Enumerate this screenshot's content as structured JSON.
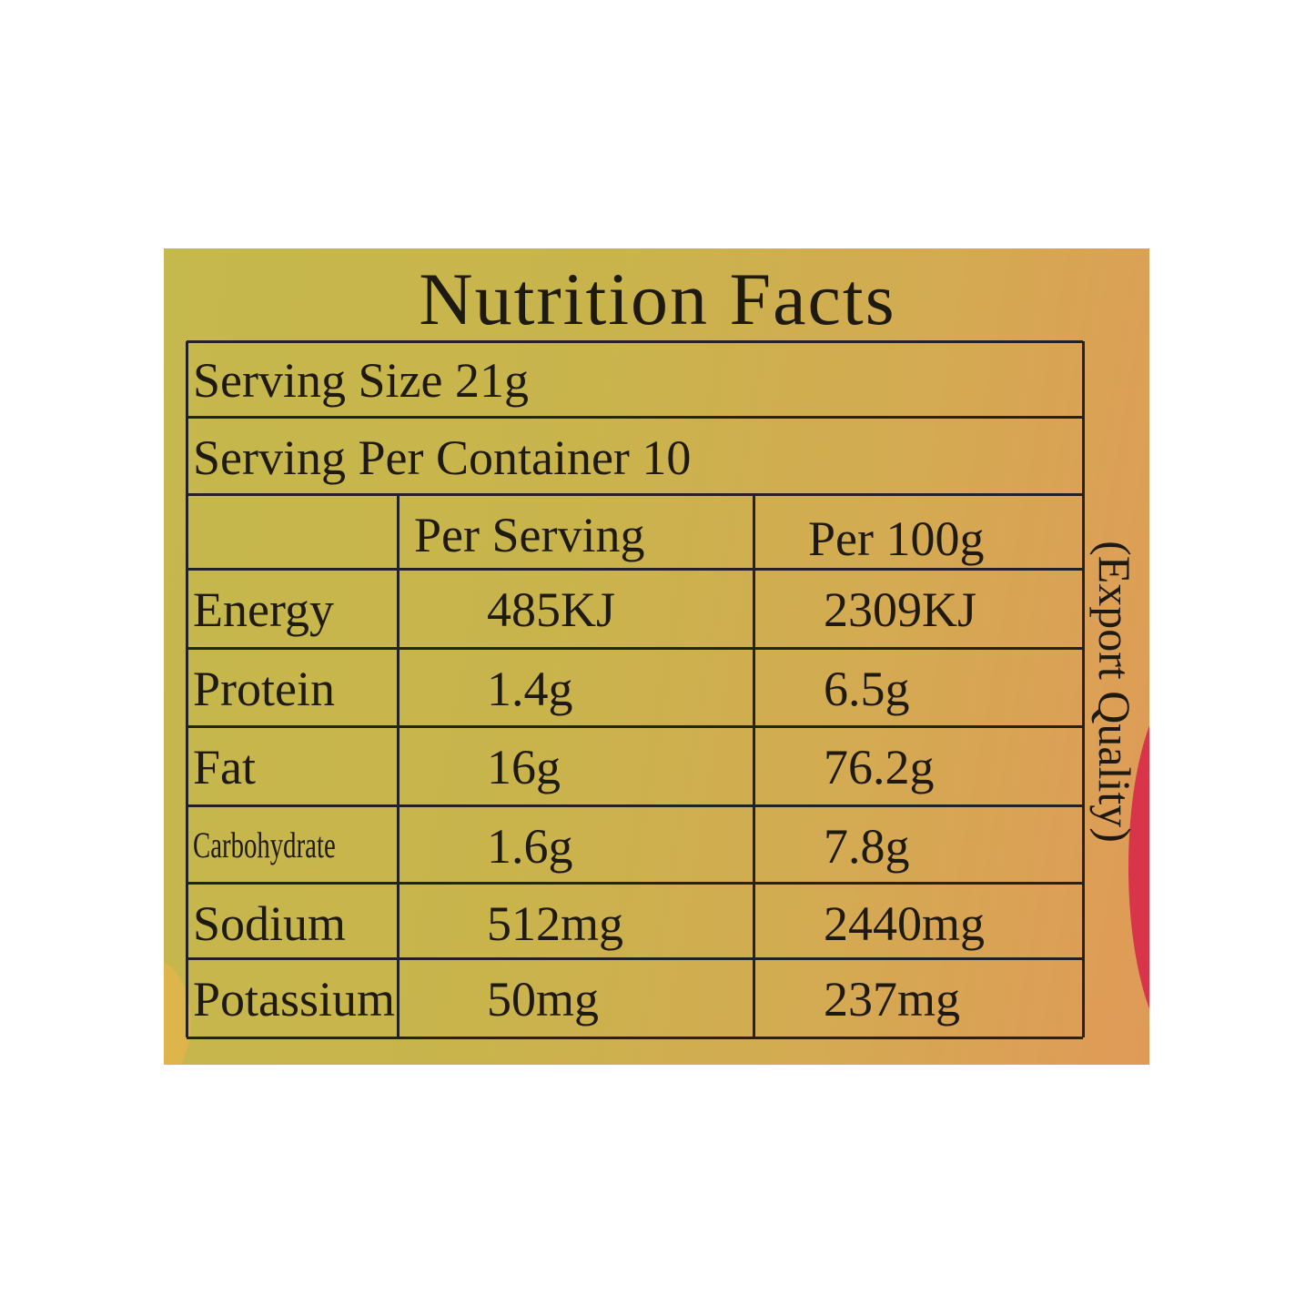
{
  "title": "Nutrition Facts",
  "side_note": "(Export Quality)",
  "table": {
    "serving_size": "Serving Size 21g",
    "servings_per_container": "Serving Per Container 10",
    "columns": [
      "Per Serving",
      "Per 100g"
    ],
    "rows": [
      [
        "Energy",
        "485KJ",
        "2309KJ"
      ],
      [
        "Protein",
        "1.4g",
        "6.5g"
      ],
      [
        "Fat",
        "16g",
        "76.2g"
      ],
      [
        "Carbohydrate",
        "1.6g",
        "7.8g"
      ],
      [
        "Sodium",
        "512mg",
        "2440mg"
      ],
      [
        "Potassium",
        "50mg",
        "237mg"
      ]
    ]
  }
}
